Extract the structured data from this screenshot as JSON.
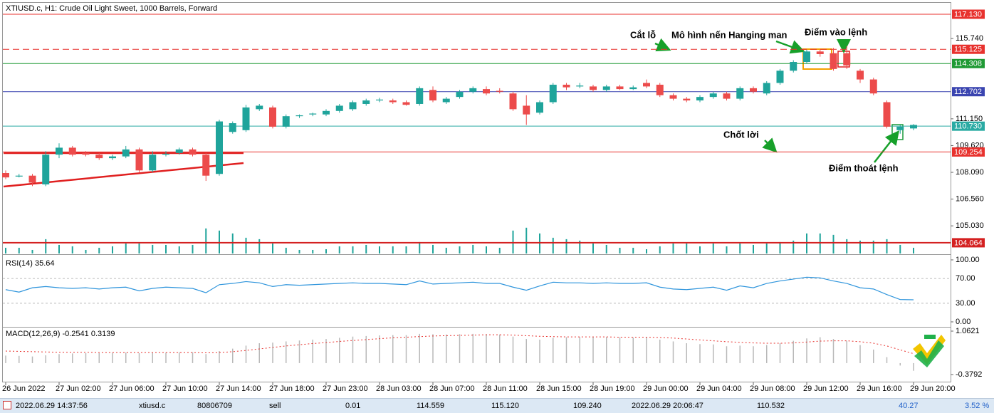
{
  "chart_data": {
    "type": "candlestick",
    "title": "XTIUSD.c, H1:  Crude Oil Light Sweet, 1000 Barrels, Forward",
    "categories": [
      "26 Jun 2022",
      null,
      null,
      null,
      "27 Jun 02:00",
      null,
      null,
      null,
      "27 Jun 06:00",
      null,
      null,
      null,
      "27 Jun 10:00",
      null,
      null,
      null,
      "27 Jun 14:00",
      null,
      null,
      null,
      "27 Jun 18:00",
      null,
      null,
      null,
      "27 Jun 23:00",
      null,
      null,
      null,
      "28 Jun 03:00",
      null,
      null,
      null,
      "28 Jun 07:00",
      null,
      null,
      null,
      "28 Jun 11:00",
      null,
      null,
      null,
      "28 Jun 15:00",
      null,
      null,
      null,
      "28 Jun 19:00",
      null,
      null,
      null,
      "29 Jun 00:00",
      null,
      null,
      null,
      "29 Jun 04:00",
      null,
      null,
      null,
      "29 Jun 08:00",
      null,
      null,
      null,
      "29 Jun 12:00",
      null,
      null,
      null,
      "29 Jun 16:00",
      null,
      null,
      null,
      "29 Jun 20:00"
    ],
    "open": [
      108.05,
      107.85,
      107.9,
      107.4,
      109.1,
      109.5,
      109.2,
      109.1,
      108.9,
      109.0,
      109.4,
      108.2,
      109.1,
      109.2,
      109.4,
      109.1,
      108.0,
      110.4,
      110.5,
      111.7,
      111.8,
      110.7,
      111.3,
      111.4,
      111.4,
      111.6,
      111.7,
      112.0,
      112.2,
      112.2,
      112.1,
      112.0,
      112.8,
      112.1,
      112.4,
      112.7,
      112.85,
      112.75,
      112.6,
      111.9,
      111.5,
      112.1,
      113.1,
      113.0,
      113.0,
      112.8,
      113.0,
      112.85,
      113.2,
      113.1,
      112.5,
      112.3,
      112.2,
      112.4,
      112.6,
      112.3,
      112.9,
      112.6,
      113.2,
      113.9,
      114.4,
      115.0,
      114.9,
      114.9,
      113.9,
      113.4,
      112.1,
      110.5,
      110.6
    ],
    "high": [
      108.2,
      108.0,
      108.0,
      109.3,
      109.75,
      109.6,
      109.3,
      109.2,
      109.1,
      109.6,
      109.5,
      109.3,
      109.3,
      109.5,
      109.5,
      109.2,
      111.1,
      111.0,
      111.95,
      112.0,
      111.9,
      111.4,
      111.4,
      111.5,
      111.7,
      112.0,
      112.2,
      112.3,
      112.35,
      112.3,
      112.2,
      113.0,
      113.0,
      112.4,
      112.8,
      113.0,
      113.0,
      112.9,
      112.7,
      112.5,
      112.2,
      113.2,
      113.2,
      113.2,
      113.1,
      113.1,
      113.1,
      113.05,
      113.4,
      113.2,
      112.6,
      112.4,
      112.5,
      112.7,
      112.7,
      113.0,
      113.0,
      113.3,
      114.0,
      114.5,
      115.1,
      115.1,
      115.2,
      115.3,
      114.0,
      113.5,
      112.2,
      110.8,
      110.85
    ],
    "low": [
      107.7,
      107.8,
      107.3,
      107.3,
      108.9,
      109.0,
      109.0,
      108.8,
      108.8,
      108.9,
      108.1,
      108.1,
      109.0,
      109.1,
      109.0,
      107.6,
      107.9,
      110.3,
      110.4,
      111.6,
      110.6,
      110.6,
      111.2,
      111.3,
      111.3,
      111.5,
      111.6,
      111.9,
      112.1,
      112.0,
      111.9,
      111.9,
      112.1,
      112.0,
      112.3,
      112.6,
      112.5,
      112.6,
      111.6,
      110.8,
      111.4,
      112.0,
      112.8,
      112.9,
      112.7,
      112.7,
      112.8,
      112.8,
      112.9,
      112.4,
      112.2,
      112.1,
      112.1,
      112.3,
      112.2,
      112.2,
      112.6,
      112.5,
      113.1,
      113.8,
      114.3,
      114.7,
      113.9,
      114.0,
      113.2,
      112.5,
      110.6,
      110.3,
      110.5
    ],
    "close": [
      107.8,
      107.9,
      107.5,
      109.1,
      109.5,
      109.1,
      109.1,
      108.9,
      109.0,
      109.4,
      108.2,
      109.1,
      109.15,
      109.4,
      109.1,
      107.9,
      111.0,
      110.9,
      111.8,
      111.9,
      110.7,
      111.3,
      111.35,
      111.45,
      111.6,
      111.9,
      112.1,
      112.2,
      112.25,
      112.1,
      111.95,
      112.9,
      112.2,
      112.3,
      112.7,
      112.9,
      112.6,
      112.7,
      111.7,
      111.4,
      112.1,
      113.1,
      112.95,
      113.05,
      112.8,
      113.0,
      112.85,
      112.95,
      113.0,
      112.5,
      112.3,
      112.2,
      112.4,
      112.6,
      112.3,
      112.9,
      112.7,
      113.2,
      113.9,
      114.4,
      115.0,
      114.85,
      114.0,
      114.2,
      113.4,
      112.6,
      110.7,
      110.7,
      110.8
    ],
    "up_color": "#1fa49b",
    "down_color": "#ec4b4b",
    "ylim": [
      103.45,
      117.78
    ],
    "yticks": [
      {
        "value": 115.74,
        "label": "115.740"
      },
      {
        "value": 111.15,
        "label": "111.150"
      },
      {
        "value": 109.62,
        "label": "109.620"
      },
      {
        "value": 108.09,
        "label": "108.090"
      },
      {
        "value": 106.56,
        "label": "106.560"
      },
      {
        "value": 105.03,
        "label": "105.030"
      }
    ],
    "levels": [
      {
        "value": 117.13,
        "label": "117.130",
        "color": "#e8322e",
        "dashed": false
      },
      {
        "value": 115.125,
        "color": "#e8322e",
        "dashed": true
      },
      {
        "value": 114.308,
        "color": "#1f9a34",
        "dashed": false
      },
      {
        "value": 112.702,
        "color": "#3a44b0",
        "dashed": false
      },
      {
        "value": 110.73,
        "label": "110.730",
        "color": "#2aaaa3",
        "dashed": false
      },
      {
        "value": 109.254,
        "color": "#e8322e",
        "dashed": false
      },
      {
        "value": 104.064,
        "color": "#d42020",
        "dashed": false
      }
    ],
    "volume": [
      8,
      8,
      5,
      20,
      12,
      10,
      5,
      8,
      10,
      14,
      14,
      12,
      12,
      10,
      12,
      35,
      32,
      28,
      22,
      20,
      14,
      8,
      5,
      5,
      6,
      10,
      10,
      12,
      10,
      10,
      10,
      16,
      12,
      8,
      10,
      12,
      10,
      8,
      32,
      36,
      28,
      22,
      20,
      18,
      14,
      12,
      8,
      8,
      6,
      10,
      14,
      14,
      10,
      14,
      10,
      14,
      12,
      14,
      16,
      18,
      28,
      28,
      26,
      20,
      18,
      18,
      20,
      12,
      8
    ],
    "volume_ylim": [
      0,
      350
    ],
    "volume_color": "#1fa49b",
    "annotations": [
      "Cắt lỗ",
      "Mô hình nến Hanging man",
      "Điểm vào lệnh",
      "Chốt lời",
      "Điểm thoát lệnh"
    ],
    "rsi": {
      "label": "RSI(14) 35.64",
      "color": "#2f95dc",
      "values": [
        52,
        48,
        55,
        57,
        55,
        54,
        55,
        53,
        55,
        56,
        50,
        54,
        56,
        55,
        54,
        47,
        60,
        62,
        65,
        63,
        57,
        60,
        59,
        60,
        61,
        62,
        63,
        62,
        62,
        61,
        60,
        66,
        61,
        62,
        63,
        64,
        62,
        62,
        56,
        51,
        58,
        64,
        63,
        63,
        62,
        63,
        62,
        62,
        63,
        56,
        53,
        52,
        54,
        56,
        51,
        58,
        55,
        62,
        66,
        69,
        72,
        71,
        66,
        62,
        55,
        53,
        44,
        36,
        35.64
      ],
      "ylim": [
        -6.9,
        108
      ],
      "yticks": [
        {
          "value": 100,
          "label": "100.00"
        },
        {
          "value": 70,
          "label": "70.00"
        },
        {
          "value": 30,
          "label": "30.00"
        },
        {
          "value": 0,
          "label": "0.00"
        }
      ]
    },
    "macd": {
      "label": "MACD(12,26,9) -0.2541 0.3139",
      "main_color": "#b8b8b8",
      "signal_color": "#e8322e",
      "main": [
        0.25,
        0.24,
        0.22,
        0.26,
        0.3,
        0.32,
        0.33,
        0.33,
        0.34,
        0.35,
        0.33,
        0.34,
        0.35,
        0.36,
        0.36,
        0.3,
        0.4,
        0.48,
        0.58,
        0.66,
        0.68,
        0.72,
        0.75,
        0.78,
        0.8,
        0.84,
        0.88,
        0.9,
        0.92,
        0.93,
        0.93,
        0.97,
        0.96,
        0.95,
        0.96,
        0.97,
        0.96,
        0.95,
        0.88,
        0.8,
        0.78,
        0.84,
        0.86,
        0.87,
        0.87,
        0.87,
        0.86,
        0.85,
        0.85,
        0.78,
        0.72,
        0.66,
        0.63,
        0.62,
        0.56,
        0.58,
        0.56,
        0.6,
        0.66,
        0.74,
        0.82,
        0.86,
        0.8,
        0.74,
        0.6,
        0.45,
        0.2,
        -0.08,
        -0.2541
      ],
      "signal": [
        0.4,
        0.39,
        0.38,
        0.37,
        0.36,
        0.36,
        0.36,
        0.35,
        0.35,
        0.35,
        0.35,
        0.35,
        0.35,
        0.35,
        0.35,
        0.34,
        0.35,
        0.38,
        0.42,
        0.47,
        0.52,
        0.57,
        0.61,
        0.65,
        0.68,
        0.72,
        0.75,
        0.78,
        0.81,
        0.84,
        0.86,
        0.88,
        0.9,
        0.91,
        0.92,
        0.93,
        0.94,
        0.94,
        0.93,
        0.91,
        0.89,
        0.88,
        0.87,
        0.87,
        0.87,
        0.87,
        0.86,
        0.86,
        0.86,
        0.85,
        0.83,
        0.8,
        0.77,
        0.74,
        0.71,
        0.69,
        0.67,
        0.66,
        0.66,
        0.67,
        0.7,
        0.73,
        0.74,
        0.74,
        0.71,
        0.66,
        0.57,
        0.44,
        0.3139
      ],
      "ylim": [
        -0.639,
        1.18
      ],
      "yticks": [
        1.0621,
        -0.3792
      ]
    }
  },
  "status_bar": {
    "fields": [
      "2022.06.29 14:37:56",
      "xtiusd.c",
      "80806709",
      "sell",
      "0.01",
      "114.559",
      "115.120",
      "109.240",
      "2022.06.29 20:06:47",
      "110.532",
      "40.27",
      "3.52 %"
    ]
  }
}
